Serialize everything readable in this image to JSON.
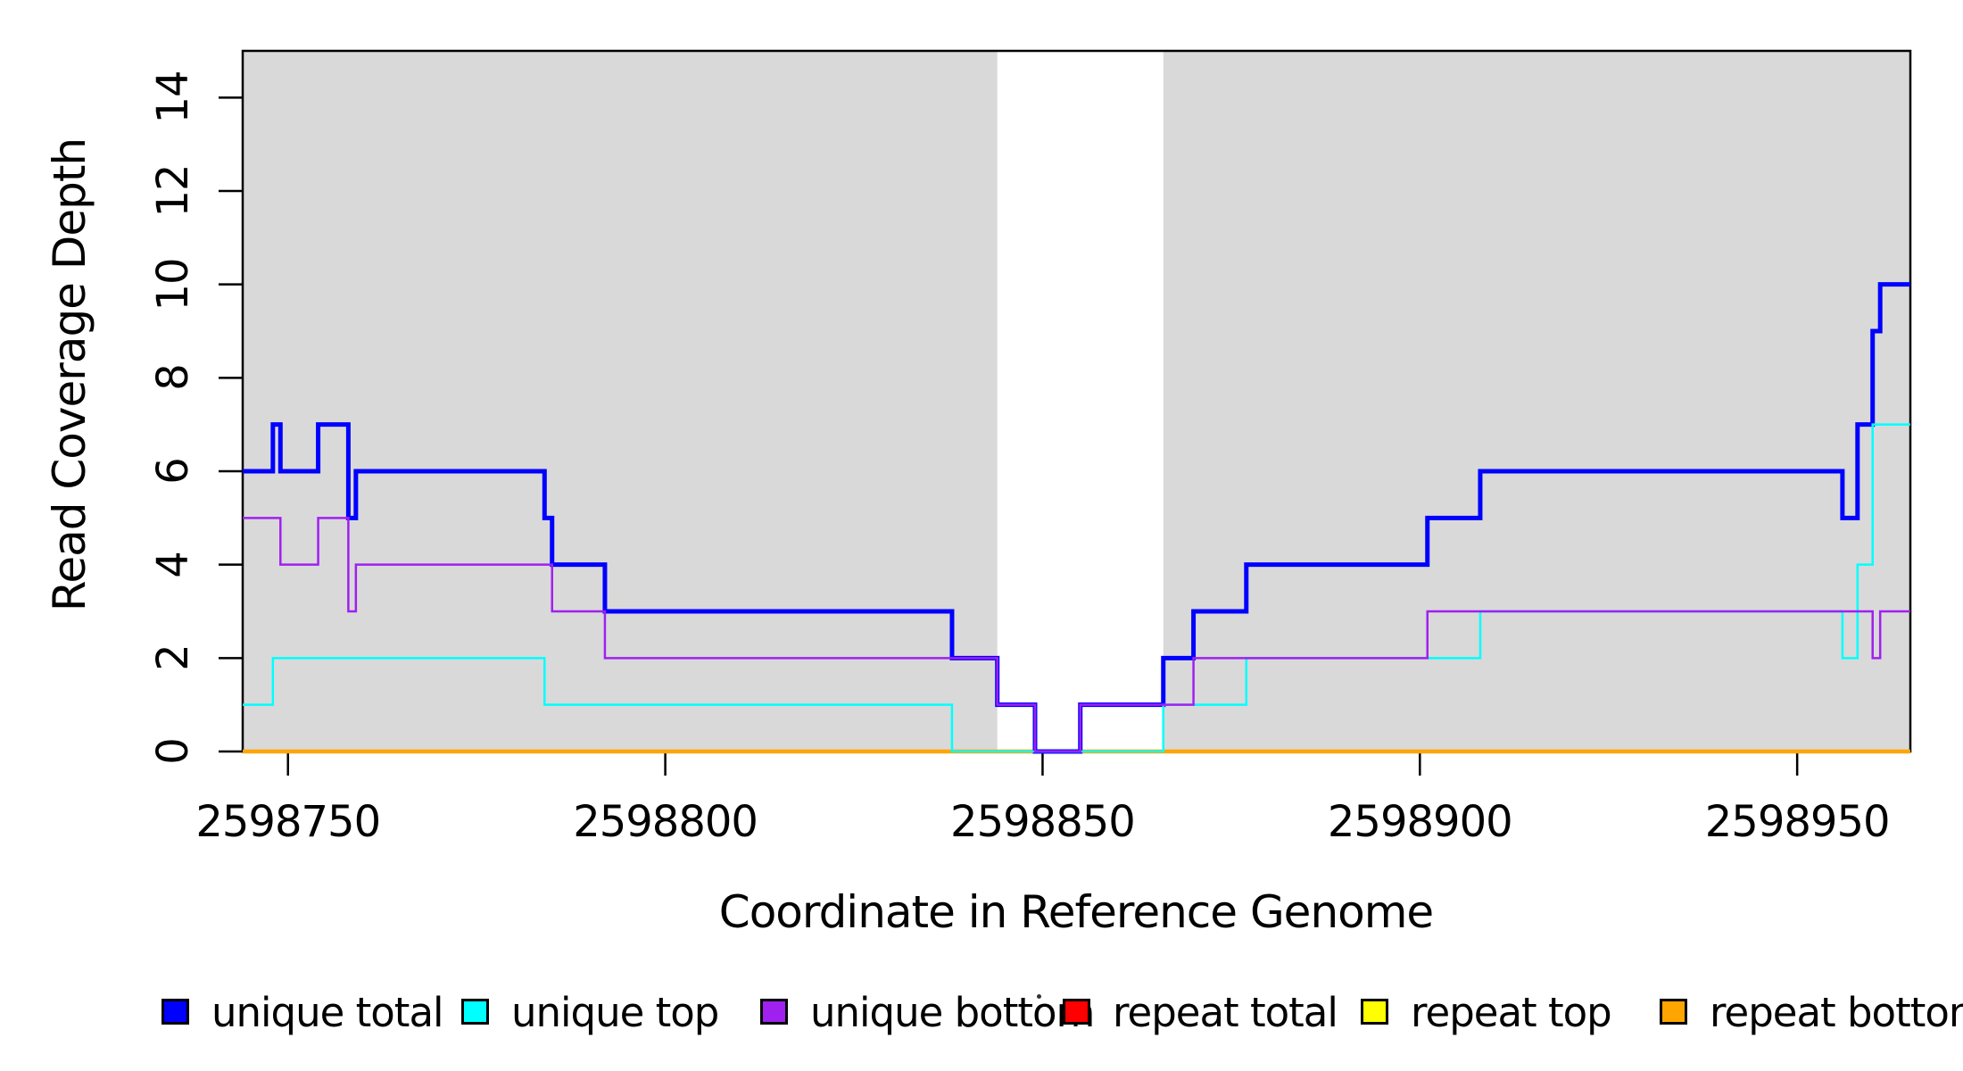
{
  "figure": {
    "background": "#FFFFFF",
    "plot_background": "#D9D9D9",
    "border_color": "#000000"
  },
  "chart_data": {
    "type": "line",
    "subtype": "step-coverage",
    "title": "",
    "xlabel": "Coordinate in Reference Genome",
    "ylabel": "Read Coverage Depth",
    "xlim": [
      2598744,
      2598965
    ],
    "ylim": [
      0,
      15
    ],
    "x_ticks": [
      2598750,
      2598800,
      2598850,
      2598900,
      2598950
    ],
    "y_ticks": [
      0,
      2,
      4,
      6,
      8,
      10,
      12,
      14
    ],
    "grid": false,
    "legend_position": "bottom-horizontal",
    "shaded_x_regions": [
      {
        "from": 2598744,
        "to": 2598844,
        "color": "#D9D9D9"
      },
      {
        "from": 2598866,
        "to": 2598965,
        "color": "#D9D9D9"
      }
    ],
    "unshaded_gap": {
      "from": 2598844,
      "to": 2598866
    },
    "x_end": 2598965,
    "series": [
      {
        "name": "repeat total",
        "color": "#FF0000",
        "width": 2.5,
        "steps": [
          [
            2598744,
            0
          ]
        ]
      },
      {
        "name": "repeat top",
        "color": "#FFFF00",
        "width": 2.5,
        "steps": [
          [
            2598744,
            0
          ]
        ]
      },
      {
        "name": "repeat bottom",
        "color": "#FFA500",
        "width": 4.5,
        "steps": [
          [
            2598744,
            0
          ]
        ]
      },
      {
        "name": "unique total",
        "color": "#0000FF",
        "width": 5,
        "steps": [
          [
            2598744,
            6
          ],
          [
            2598748,
            7
          ],
          [
            2598749,
            6
          ],
          [
            2598754,
            7
          ],
          [
            2598758,
            5
          ],
          [
            2598759,
            6
          ],
          [
            2598784,
            5
          ],
          [
            2598785,
            4
          ],
          [
            2598792,
            3
          ],
          [
            2598838,
            2
          ],
          [
            2598844,
            1
          ],
          [
            2598849,
            0
          ],
          [
            2598855,
            1
          ],
          [
            2598866,
            2
          ],
          [
            2598870,
            3
          ],
          [
            2598877,
            4
          ],
          [
            2598901,
            5
          ],
          [
            2598908,
            6
          ],
          [
            2598956,
            5
          ],
          [
            2598958,
            7
          ],
          [
            2598960,
            9
          ],
          [
            2598961,
            10
          ]
        ]
      },
      {
        "name": "unique top",
        "color": "#00FFFF",
        "width": 2.5,
        "steps": [
          [
            2598744,
            1
          ],
          [
            2598748,
            2
          ],
          [
            2598784,
            1
          ],
          [
            2598838,
            0
          ],
          [
            2598866,
            1
          ],
          [
            2598877,
            2
          ],
          [
            2598908,
            3
          ],
          [
            2598956,
            2
          ],
          [
            2598958,
            4
          ],
          [
            2598960,
            7
          ]
        ]
      },
      {
        "name": "unique bottom",
        "color": "#A020F0",
        "width": 2.5,
        "steps": [
          [
            2598744,
            5
          ],
          [
            2598749,
            4
          ],
          [
            2598754,
            5
          ],
          [
            2598758,
            3
          ],
          [
            2598759,
            4
          ],
          [
            2598785,
            3
          ],
          [
            2598792,
            2
          ],
          [
            2598844,
            1
          ],
          [
            2598849,
            0
          ],
          [
            2598855,
            1
          ],
          [
            2598870,
            2
          ],
          [
            2598901,
            3
          ],
          [
            2598960,
            2
          ],
          [
            2598961,
            3
          ]
        ]
      }
    ]
  },
  "legend": {
    "items": [
      {
        "label": "unique total",
        "color": "#0000FF"
      },
      {
        "label": "unique top",
        "color": "#00FFFF"
      },
      {
        "label": "unique bottom",
        "color": "#A020F0"
      },
      {
        "label": "repeat total",
        "color": "#FF0000"
      },
      {
        "label": "repeat top",
        "color": "#FFFF00"
      },
      {
        "label": "repeat bottom",
        "color": "#FFA500"
      }
    ],
    "stray_mark": " "
  }
}
